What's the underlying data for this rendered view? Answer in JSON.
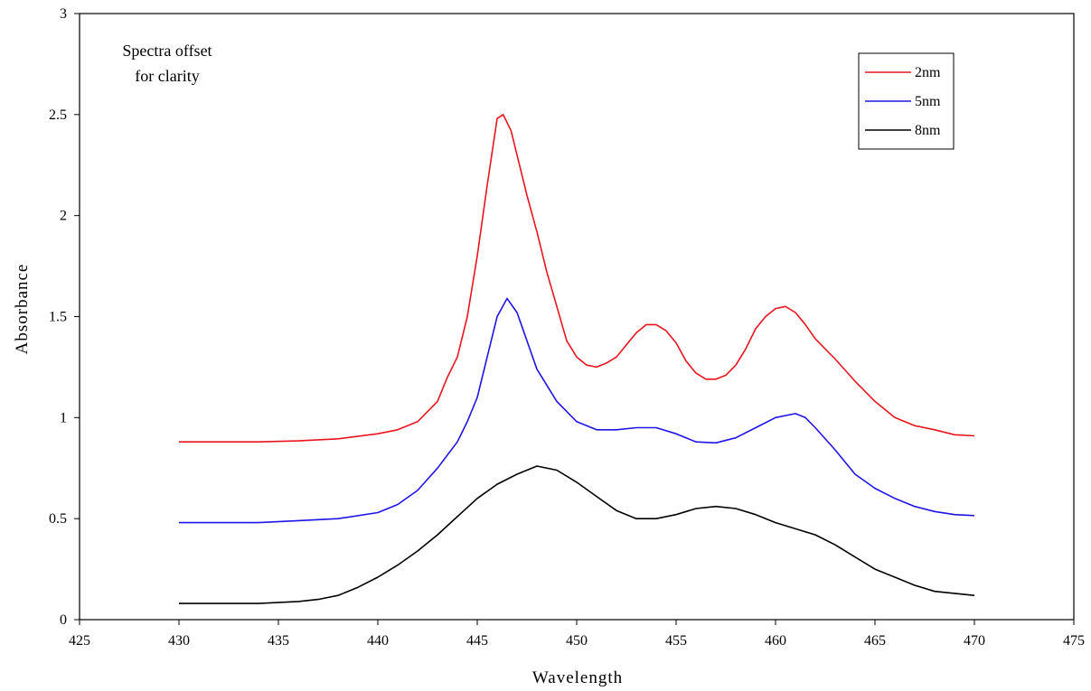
{
  "chart_data": {
    "type": "line",
    "title": "",
    "xlabel": "Wavelength",
    "ylabel": "Absorbance",
    "xlim": [
      425,
      475
    ],
    "ylim": [
      0,
      3
    ],
    "xticks": [
      425,
      430,
      435,
      440,
      445,
      450,
      455,
      460,
      465,
      470,
      475
    ],
    "xtick_labels": [
      "425",
      "430",
      "435",
      "440",
      "445",
      "450",
      "455",
      "460",
      "465",
      "470",
      "475"
    ],
    "yticks": [
      0,
      0.5,
      1,
      1.5,
      2,
      2.5,
      3
    ],
    "ytick_labels": [
      "0",
      "0.5",
      "1",
      "1.5",
      "2",
      "2.5",
      "3"
    ],
    "grid": false,
    "legend_position": "top-right",
    "annotation": [
      "Spectra offset",
      "for clarity"
    ],
    "series": [
      {
        "name": "2nm",
        "color": "#e8141e",
        "points": [
          [
            430,
            0.88
          ],
          [
            434,
            0.88
          ],
          [
            436,
            0.885
          ],
          [
            438,
            0.895
          ],
          [
            440,
            0.92
          ],
          [
            441,
            0.94
          ],
          [
            442,
            0.98
          ],
          [
            443,
            1.08
          ],
          [
            443.5,
            1.2
          ],
          [
            444,
            1.3
          ],
          [
            444.5,
            1.5
          ],
          [
            445,
            1.8
          ],
          [
            445.5,
            2.15
          ],
          [
            446,
            2.48
          ],
          [
            446.3,
            2.5
          ],
          [
            446.7,
            2.42
          ],
          [
            447,
            2.3
          ],
          [
            447.5,
            2.1
          ],
          [
            448,
            1.92
          ],
          [
            448.5,
            1.72
          ],
          [
            449,
            1.55
          ],
          [
            449.5,
            1.38
          ],
          [
            450,
            1.3
          ],
          [
            450.5,
            1.26
          ],
          [
            451,
            1.25
          ],
          [
            451.5,
            1.27
          ],
          [
            452,
            1.3
          ],
          [
            452.5,
            1.36
          ],
          [
            453,
            1.42
          ],
          [
            453.5,
            1.46
          ],
          [
            454,
            1.46
          ],
          [
            454.5,
            1.43
          ],
          [
            455,
            1.37
          ],
          [
            455.5,
            1.28
          ],
          [
            456,
            1.22
          ],
          [
            456.5,
            1.19
          ],
          [
            457,
            1.19
          ],
          [
            457.5,
            1.21
          ],
          [
            458,
            1.26
          ],
          [
            458.5,
            1.34
          ],
          [
            459,
            1.44
          ],
          [
            459.5,
            1.5
          ],
          [
            460,
            1.54
          ],
          [
            460.5,
            1.55
          ],
          [
            461,
            1.52
          ],
          [
            461.5,
            1.46
          ],
          [
            462,
            1.39
          ],
          [
            463,
            1.29
          ],
          [
            464,
            1.18
          ],
          [
            465,
            1.08
          ],
          [
            466,
            1.0
          ],
          [
            467,
            0.96
          ],
          [
            468,
            0.94
          ],
          [
            469,
            0.915
          ],
          [
            470,
            0.91
          ]
        ]
      },
      {
        "name": "5nm",
        "color": "#1f14e6",
        "points": [
          [
            430,
            0.48
          ],
          [
            434,
            0.48
          ],
          [
            436,
            0.49
          ],
          [
            438,
            0.5
          ],
          [
            440,
            0.53
          ],
          [
            441,
            0.57
          ],
          [
            442,
            0.64
          ],
          [
            443,
            0.75
          ],
          [
            444,
            0.88
          ],
          [
            444.5,
            0.98
          ],
          [
            445,
            1.1
          ],
          [
            445.5,
            1.3
          ],
          [
            446,
            1.5
          ],
          [
            446.5,
            1.59
          ],
          [
            447,
            1.52
          ],
          [
            447.5,
            1.38
          ],
          [
            448,
            1.24
          ],
          [
            449,
            1.08
          ],
          [
            450,
            0.98
          ],
          [
            451,
            0.94
          ],
          [
            452,
            0.94
          ],
          [
            453,
            0.95
          ],
          [
            454,
            0.95
          ],
          [
            455,
            0.92
          ],
          [
            456,
            0.88
          ],
          [
            457,
            0.875
          ],
          [
            458,
            0.9
          ],
          [
            459,
            0.95
          ],
          [
            460,
            1.0
          ],
          [
            461,
            1.02
          ],
          [
            461.5,
            1.0
          ],
          [
            462,
            0.95
          ],
          [
            463,
            0.84
          ],
          [
            464,
            0.72
          ],
          [
            465,
            0.65
          ],
          [
            466,
            0.6
          ],
          [
            467,
            0.56
          ],
          [
            468,
            0.535
          ],
          [
            469,
            0.52
          ],
          [
            470,
            0.515
          ]
        ]
      },
      {
        "name": "8nm",
        "color": "#000000",
        "points": [
          [
            430,
            0.08
          ],
          [
            434,
            0.08
          ],
          [
            436,
            0.09
          ],
          [
            437,
            0.1
          ],
          [
            438,
            0.12
          ],
          [
            439,
            0.16
          ],
          [
            440,
            0.21
          ],
          [
            441,
            0.27
          ],
          [
            442,
            0.34
          ],
          [
            443,
            0.42
          ],
          [
            444,
            0.51
          ],
          [
            445,
            0.6
          ],
          [
            446,
            0.67
          ],
          [
            447,
            0.72
          ],
          [
            448,
            0.76
          ],
          [
            449,
            0.74
          ],
          [
            450,
            0.68
          ],
          [
            451,
            0.61
          ],
          [
            452,
            0.54
          ],
          [
            453,
            0.5
          ],
          [
            454,
            0.5
          ],
          [
            455,
            0.52
          ],
          [
            456,
            0.55
          ],
          [
            457,
            0.56
          ],
          [
            458,
            0.55
          ],
          [
            459,
            0.52
          ],
          [
            460,
            0.48
          ],
          [
            461,
            0.45
          ],
          [
            462,
            0.42
          ],
          [
            463,
            0.37
          ],
          [
            464,
            0.31
          ],
          [
            465,
            0.25
          ],
          [
            466,
            0.21
          ],
          [
            467,
            0.17
          ],
          [
            468,
            0.14
          ],
          [
            469,
            0.13
          ],
          [
            470,
            0.12
          ]
        ]
      }
    ]
  }
}
